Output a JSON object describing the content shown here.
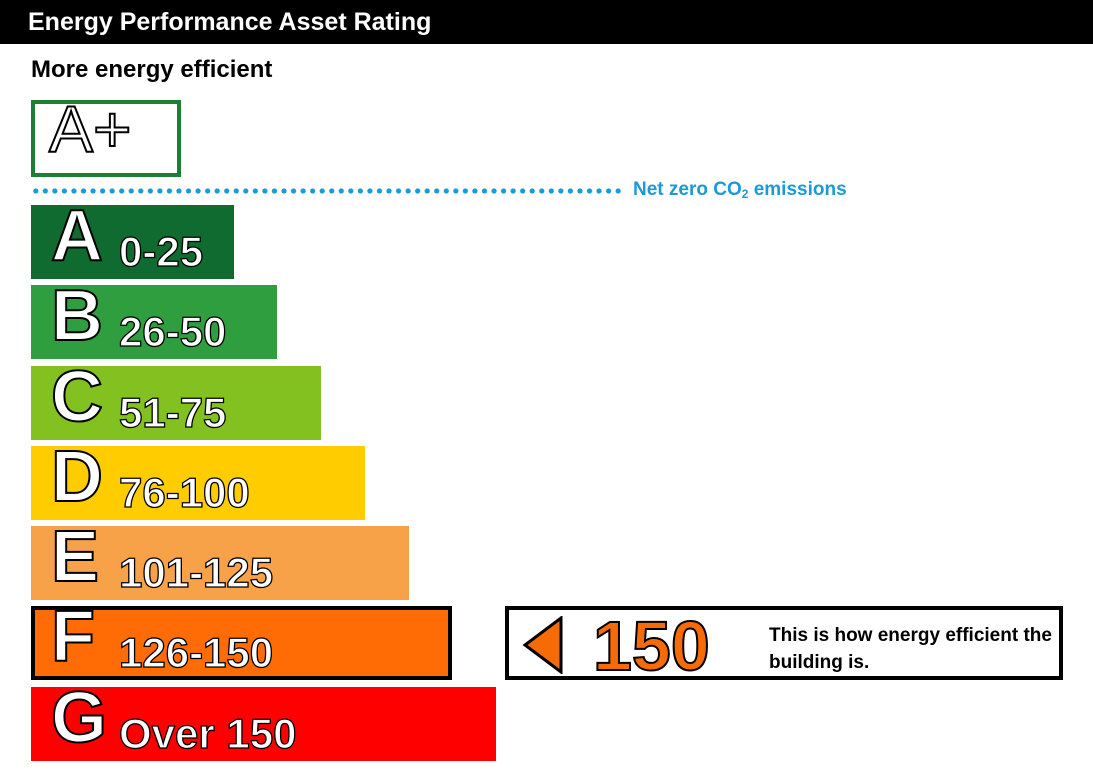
{
  "header": {
    "title": "Energy Performance Asset Rating"
  },
  "subheader": "More energy efficient",
  "aplus": {
    "label": "A+",
    "border_color": "#1e7e34"
  },
  "net_zero": {
    "text": "Net zero CO",
    "sub": "2",
    "suffix": " emissions",
    "color": "#1d9ad6"
  },
  "bands": [
    {
      "letter": "A",
      "range": "0-25",
      "color": "#0f6b2f"
    },
    {
      "letter": "B",
      "range": "26-50",
      "color": "#2f9e3f"
    },
    {
      "letter": "C",
      "range": "51-75",
      "color": "#82c11f"
    },
    {
      "letter": "D",
      "range": "76-100",
      "color": "#ffcc00"
    },
    {
      "letter": "E",
      "range": "101-125",
      "color": "#f7a249"
    },
    {
      "letter": "F",
      "range": "126-150",
      "color": "#ff6b05"
    },
    {
      "letter": "G",
      "range": "Over 150",
      "color": "#fe0000"
    }
  ],
  "indicator": {
    "value": "150",
    "text": "This is how energy efficient the building is.",
    "color": "#f76b07"
  },
  "chart_data": {
    "type": "bar",
    "title": "Energy Performance Asset Rating",
    "categories": [
      "A",
      "B",
      "C",
      "D",
      "E",
      "F",
      "G"
    ],
    "range_labels": [
      "0-25",
      "26-50",
      "51-75",
      "76-100",
      "101-125",
      "126-150",
      "Over 150"
    ],
    "current_rating": {
      "band": "F",
      "value": 150
    },
    "orientation": "horizontal"
  }
}
